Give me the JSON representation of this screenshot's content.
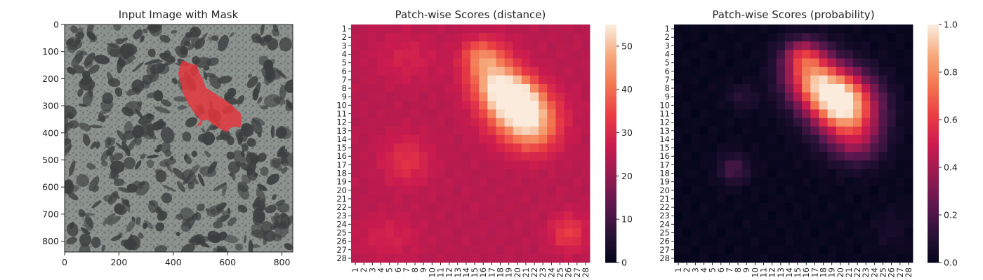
{
  "chart_data": [
    {
      "type": "image",
      "title": "Input Image with Mask",
      "xlim": [
        0,
        840
      ],
      "ylim": [
        840,
        0
      ],
      "xticks": [
        "0",
        "200",
        "400",
        "600",
        "800"
      ],
      "yticks": [
        "0",
        "100",
        "200",
        "300",
        "400",
        "500",
        "600",
        "700",
        "800"
      ],
      "background_color": "#8c928e",
      "blob_color": "#3c3f3f",
      "mask_color": "#e8353a",
      "mask_polygon": [
        [
          433,
          133
        ],
        [
          460,
          143
        ],
        [
          486,
          150
        ],
        [
          497,
          180
        ],
        [
          510,
          205
        ],
        [
          519,
          233
        ],
        [
          563,
          261
        ],
        [
          600,
          285
        ],
        [
          628,
          309
        ],
        [
          650,
          331
        ],
        [
          652,
          356
        ],
        [
          648,
          378
        ],
        [
          614,
          378
        ],
        [
          598,
          398
        ],
        [
          577,
          388
        ],
        [
          541,
          365
        ],
        [
          527,
          352
        ],
        [
          506,
          355
        ],
        [
          506,
          370
        ],
        [
          484,
          377
        ],
        [
          501,
          354
        ],
        [
          481,
          331
        ],
        [
          456,
          295
        ],
        [
          436,
          255
        ],
        [
          431,
          230
        ],
        [
          418,
          180
        ],
        [
          426,
          151
        ]
      ]
    },
    {
      "type": "heatmap",
      "title": "Patch-wise Scores (distance)",
      "grid_size": 28,
      "row_labels": [
        "1",
        "2",
        "3",
        "4",
        "5",
        "6",
        "7",
        "8",
        "9",
        "10",
        "11",
        "12",
        "13",
        "14",
        "15",
        "16",
        "17",
        "18",
        "19",
        "20",
        "21",
        "22",
        "23",
        "24",
        "25",
        "26",
        "27",
        "28"
      ],
      "col_labels": [
        "1",
        "2",
        "3",
        "4",
        "5",
        "6",
        "7",
        "8",
        "9",
        "10",
        "11",
        "12",
        "13",
        "14",
        "15",
        "16",
        "17",
        "18",
        "19",
        "20",
        "21",
        "22",
        "23",
        "24",
        "25",
        "26",
        "27",
        "28"
      ],
      "colormap": "rocket",
      "vmin": 0,
      "vmax": 55,
      "colorbar_ticks": [
        "0",
        "10",
        "20",
        "30",
        "40",
        "50"
      ],
      "base_level": 25,
      "hotspots": [
        {
          "row": 9,
          "col": 19.5,
          "amp": 30,
          "sr": 1.6,
          "sc": 1.8
        },
        {
          "row": 11,
          "col": 20.5,
          "amp": 25,
          "sr": 2.2,
          "sc": 2.6
        },
        {
          "row": 6.5,
          "col": 17,
          "amp": 22,
          "sr": 2.2,
          "sc": 2.0
        },
        {
          "row": 4,
          "col": 15.5,
          "amp": 10,
          "sr": 1.2,
          "sc": 1.4
        },
        {
          "row": 13,
          "col": 22,
          "amp": 12,
          "sr": 2.0,
          "sc": 2.0
        },
        {
          "row": 16.5,
          "col": 7,
          "amp": 7,
          "sr": 2.0,
          "sc": 2.0
        },
        {
          "row": 25,
          "col": 26,
          "amp": 9,
          "sr": 1.5,
          "sc": 1.5
        },
        {
          "row": 4.5,
          "col": 7,
          "amp": 4,
          "sr": 2.0,
          "sc": 2.5
        },
        {
          "row": 25.5,
          "col": 5,
          "amp": 4,
          "sr": 1.8,
          "sc": 2.5
        }
      ]
    },
    {
      "type": "heatmap",
      "title": "Patch-wise Scores (probability)",
      "grid_size": 28,
      "row_labels": [
        "1",
        "2",
        "3",
        "4",
        "5",
        "6",
        "7",
        "8",
        "9",
        "10",
        "11",
        "12",
        "13",
        "14",
        "15",
        "16",
        "17",
        "18",
        "19",
        "20",
        "21",
        "22",
        "23",
        "24",
        "25",
        "26",
        "27",
        "28"
      ],
      "col_labels": [
        "1",
        "2",
        "3",
        "4",
        "5",
        "6",
        "7",
        "8",
        "9",
        "10",
        "11",
        "12",
        "13",
        "14",
        "15",
        "16",
        "17",
        "18",
        "19",
        "20",
        "21",
        "22",
        "23",
        "24",
        "25",
        "26",
        "27",
        "28"
      ],
      "colormap": "rocket",
      "vmin": 0,
      "vmax": 1,
      "colorbar_ticks": [
        "0.0",
        "0.2",
        "0.4",
        "0.6",
        "0.8",
        "1.0"
      ],
      "base_level": 0.02,
      "hotspots": [
        {
          "row": 9,
          "col": 19.5,
          "amp": 0.7,
          "sr": 2.2,
          "sc": 2.5
        },
        {
          "row": 6.5,
          "col": 16.5,
          "amp": 0.6,
          "sr": 2.2,
          "sc": 2.2
        },
        {
          "row": 11,
          "col": 21,
          "amp": 0.55,
          "sr": 2.6,
          "sc": 2.6
        },
        {
          "row": 4,
          "col": 15.5,
          "amp": 0.3,
          "sr": 1.2,
          "sc": 1.5
        },
        {
          "row": 14.5,
          "col": 22,
          "amp": 0.2,
          "sr": 1.8,
          "sc": 2.0
        },
        {
          "row": 17.5,
          "col": 7.5,
          "amp": 0.18,
          "sr": 1.2,
          "sc": 1.2
        },
        {
          "row": 9,
          "col": 8.5,
          "amp": 0.1,
          "sr": 1.0,
          "sc": 1.2
        },
        {
          "row": 24.5,
          "col": 26,
          "amp": 0.05,
          "sr": 1.5,
          "sc": 1.5
        }
      ]
    }
  ]
}
